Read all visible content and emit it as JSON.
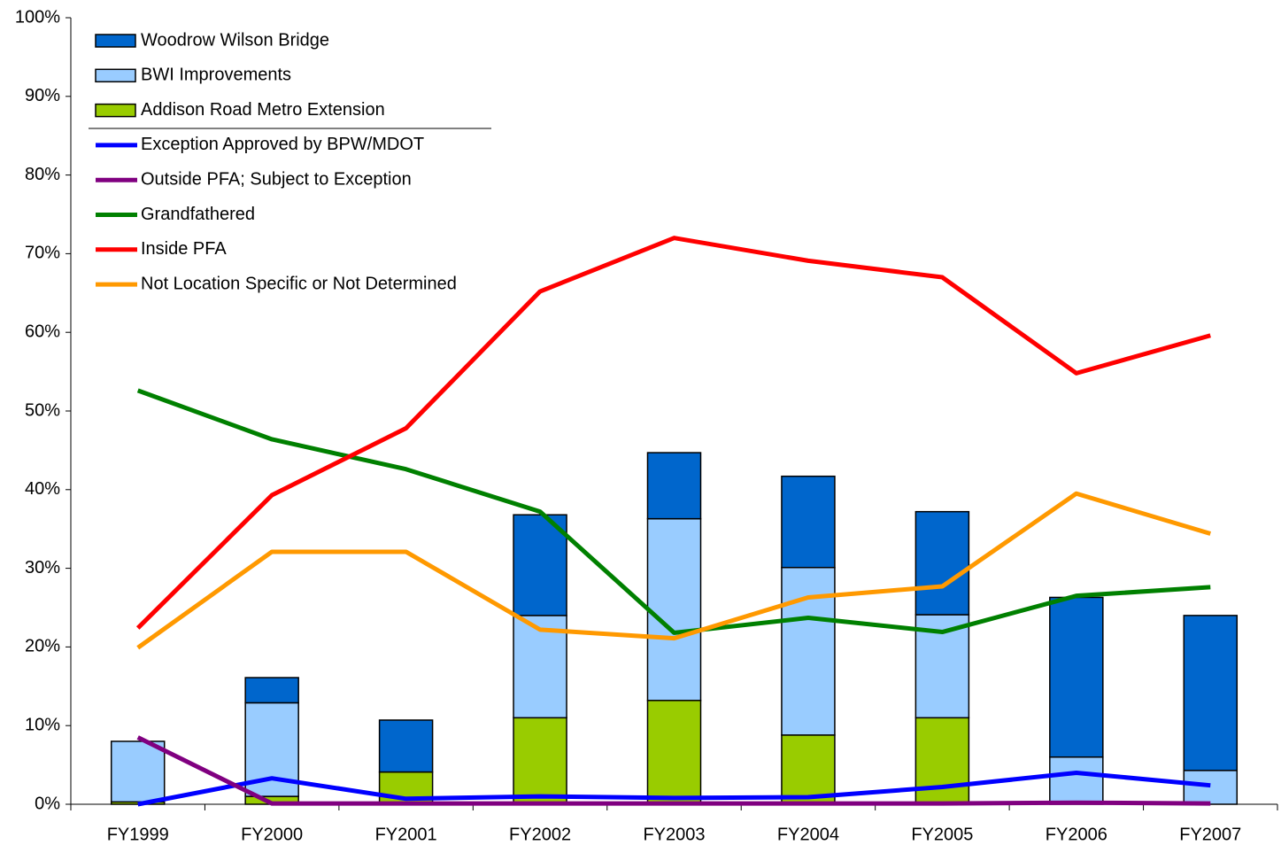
{
  "chart_data": {
    "type": "bar_line",
    "categories": [
      "FY1999",
      "FY2000",
      "FY2001",
      "FY2002",
      "FY2003",
      "FY2004",
      "FY2005",
      "FY2006",
      "FY2007"
    ],
    "ylim": [
      0,
      100
    ],
    "yticks": [
      {
        "value": 0,
        "label": "0%"
      },
      {
        "value": 10,
        "label": "10%"
      },
      {
        "value": 20,
        "label": "20%"
      },
      {
        "value": 30,
        "label": "30%"
      },
      {
        "value": 40,
        "label": "40%"
      },
      {
        "value": 50,
        "label": "50%"
      },
      {
        "value": 60,
        "label": "60%"
      },
      {
        "value": 70,
        "label": "70%"
      },
      {
        "value": 80,
        "label": "80%"
      },
      {
        "value": 90,
        "label": "90%"
      },
      {
        "value": 100,
        "label": "100%"
      }
    ],
    "bar_series": [
      {
        "name": "Addison Road Metro Extension",
        "color": "#99cc00",
        "values": [
          0.3,
          1.0,
          4.1,
          11.0,
          13.2,
          8.8,
          11.0,
          0,
          0
        ]
      },
      {
        "name": "BWI Improvements",
        "color": "#99ccff",
        "values": [
          7.7,
          11.9,
          0,
          13.0,
          23.1,
          21.3,
          13.1,
          6.0,
          4.3
        ]
      },
      {
        "name": "Woodrow Wilson Bridge",
        "color": "#0066cc",
        "values": [
          0,
          3.2,
          6.6,
          12.8,
          8.4,
          11.6,
          13.1,
          20.3,
          19.7
        ]
      }
    ],
    "line_series": [
      {
        "name": "Exception Approved by BPW/MDOT",
        "color": "#0000ff",
        "values": [
          0,
          3.3,
          0.7,
          1.0,
          0.8,
          0.9,
          2.2,
          4.0,
          2.4
        ]
      },
      {
        "name": "Outside PFA; Subject to Exception",
        "color": "#800080",
        "values": [
          8.5,
          0.1,
          0.1,
          0.1,
          0.1,
          0.1,
          0.1,
          0.2,
          0.1
        ]
      },
      {
        "name": "Grandfathered",
        "color": "#008000",
        "values": [
          52.6,
          46.4,
          42.6,
          37.2,
          21.8,
          23.7,
          21.9,
          26.5,
          27.6
        ]
      },
      {
        "name": "Inside PFA",
        "color": "#ff0000",
        "values": [
          22.4,
          39.3,
          47.8,
          65.2,
          72.0,
          69.1,
          67.0,
          54.8,
          59.6
        ]
      },
      {
        "name": "Not Location Specific or Not Determined",
        "color": "#ff9900",
        "values": [
          19.9,
          32.1,
          32.1,
          22.2,
          21.1,
          26.3,
          27.7,
          39.5,
          34.4
        ]
      }
    ]
  }
}
